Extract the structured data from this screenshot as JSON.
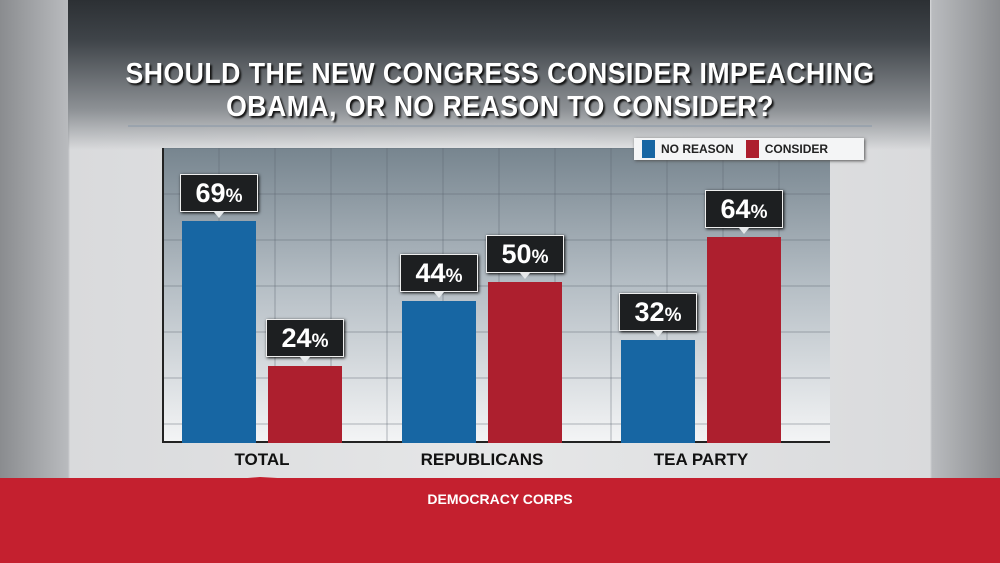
{
  "chart_data": {
    "type": "bar",
    "title": "SHOULD THE NEW CONGRESS CONSIDER IMPEACHING OBAMA, OR NO REASON TO CONSIDER?",
    "title_lines": [
      "SHOULD THE NEW CONGRESS CONSIDER IMPEACHING",
      "OBAMA, OR NO REASON TO CONSIDER?"
    ],
    "categories": [
      "TOTAL",
      "REPUBLICANS",
      "TEA PARTY"
    ],
    "series": [
      {
        "name": "NO REASON",
        "color": "#1766a3",
        "values": [
          69,
          44,
          32
        ]
      },
      {
        "name": "CONSIDER",
        "color": "#ad1f2e",
        "values": [
          24,
          50,
          64
        ]
      }
    ],
    "value_suffix": "%",
    "ylim": [
      0,
      91
    ],
    "grid": true,
    "legend": "top-right",
    "source": "DEMOCRACY CORPS"
  }
}
